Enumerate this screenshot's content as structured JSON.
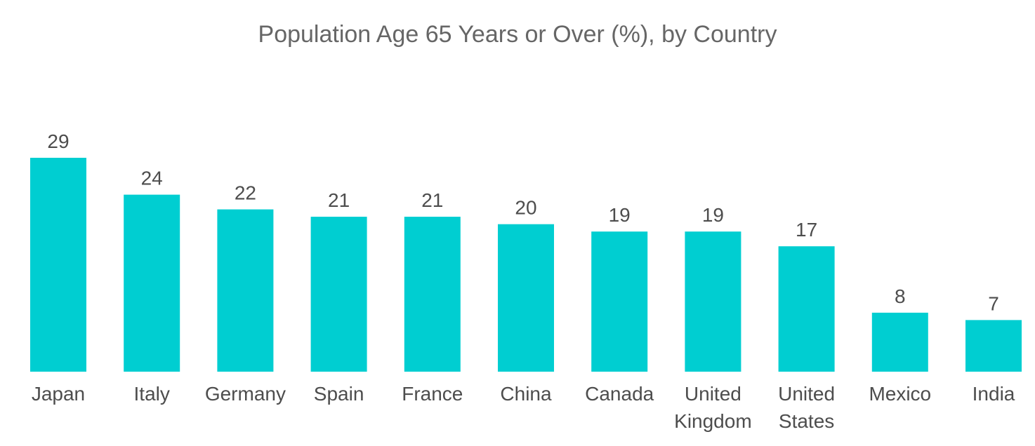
{
  "chart_data": {
    "type": "bar",
    "title": "Population Age 65 Years or Over (%), by Country",
    "xlabel": "",
    "ylabel": "",
    "categories": [
      [
        "Japan"
      ],
      [
        "Italy"
      ],
      [
        "Germany"
      ],
      [
        "Spain"
      ],
      [
        "France"
      ],
      [
        "China"
      ],
      [
        "Canada"
      ],
      [
        "United",
        "Kingdom"
      ],
      [
        "United",
        "States"
      ],
      [
        "Mexico"
      ],
      [
        "India"
      ]
    ],
    "values": [
      29,
      24,
      22,
      21,
      21,
      20,
      19,
      19,
      17,
      8,
      7
    ],
    "ylim": [
      0,
      29
    ],
    "grid": false,
    "legend": "none",
    "colors": {
      "bar": "#00CED1",
      "text": "#4d4d4d",
      "title": "#666666"
    }
  }
}
